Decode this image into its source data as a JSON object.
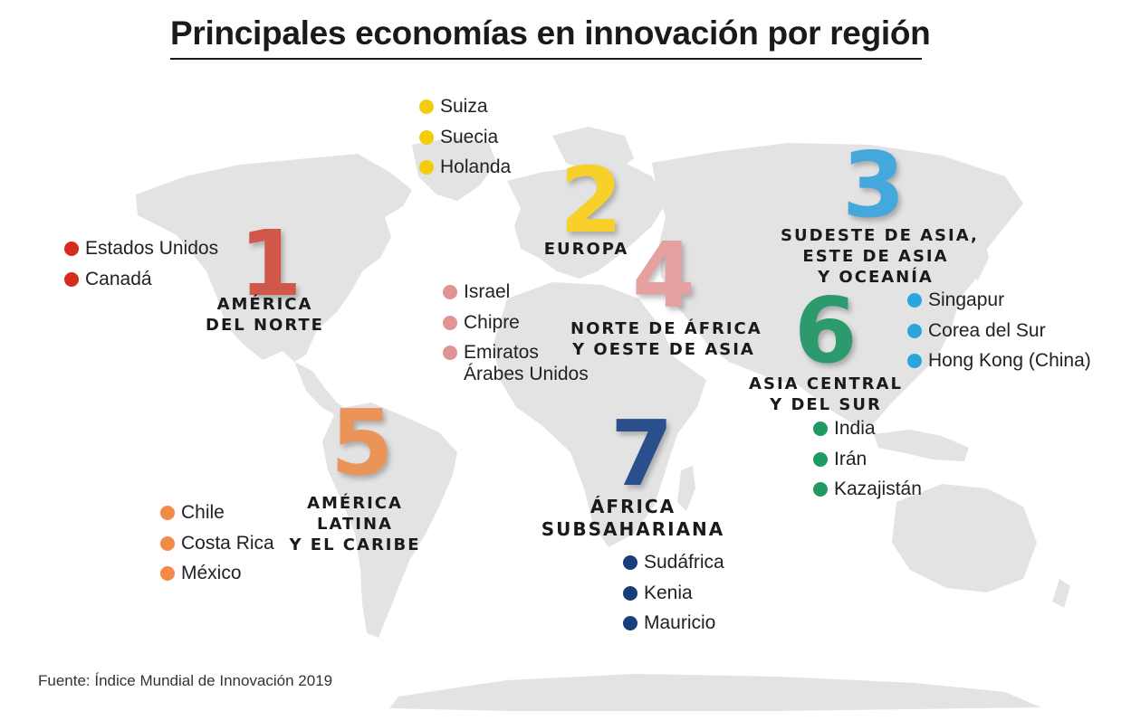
{
  "title": "Principales economías en innovación por región",
  "source": "Fuente: Índice Mundial de Innovación 2019",
  "regions": [
    {
      "number": "1",
      "label": [
        "AMÉRICA",
        "DEL NORTE"
      ],
      "color": "#d0574a",
      "dot_color": "#d42b1c",
      "countries": [
        "Estados Unidos",
        "Canadá"
      ]
    },
    {
      "number": "2",
      "label": [
        "EUROPA"
      ],
      "color": "#f7d12a",
      "dot_color": "#f5cc0d",
      "countries": [
        "Suiza",
        "Suecia",
        "Holanda"
      ]
    },
    {
      "number": "3",
      "label": [
        "SUDESTE DE ASIA,",
        "ESTE DE ASIA",
        "Y OCEANÍA"
      ],
      "color": "#44a8dc",
      "dot_color": "#2aa5de",
      "countries": [
        "Singapur",
        "Corea del Sur",
        "Hong Kong (China)"
      ]
    },
    {
      "number": "4",
      "label": [
        "NORTE DE ÁFRICA",
        "Y OESTE DE ASIA"
      ],
      "color": "#e5a0a0",
      "dot_color": "#e09494",
      "countries": [
        "Israel",
        "Chipre",
        "Emiratos",
        "Árabes Unidos"
      ]
    },
    {
      "number": "5",
      "label": [
        "AMÉRICA",
        "LATINA",
        "Y EL CARIBE"
      ],
      "color": "#ec9358",
      "dot_color": "#f48a45",
      "countries": [
        "Chile",
        "Costa Rica",
        "México"
      ]
    },
    {
      "number": "6",
      "label": [
        "ASIA CENTRAL",
        "Y DEL SUR"
      ],
      "color": "#2d9a6e",
      "dot_color": "#1f9a63",
      "countries": [
        "India",
        "Irán",
        "Kazajistán"
      ]
    },
    {
      "number": "7",
      "label": [
        "ÁFRICA",
        "SUBSAHARIANA"
      ],
      "color": "#2a4f8c",
      "dot_color": "#1a3d7c",
      "countries": [
        "Sudáfrica",
        "Kenia",
        "Mauricio"
      ]
    }
  ]
}
